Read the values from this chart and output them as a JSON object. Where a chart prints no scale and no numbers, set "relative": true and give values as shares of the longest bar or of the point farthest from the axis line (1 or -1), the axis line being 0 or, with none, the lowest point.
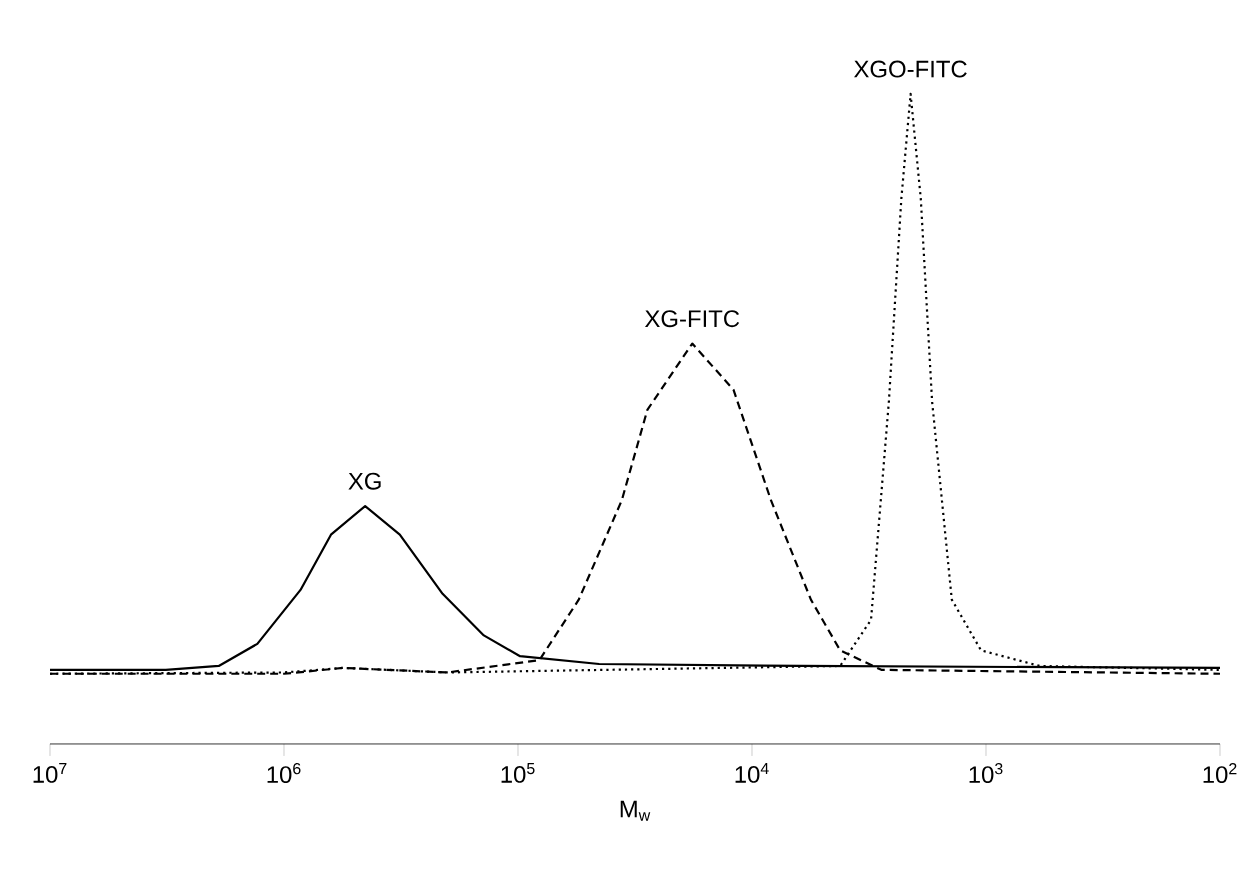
{
  "chart_data": {
    "type": "line",
    "xlabel": "M$_{w}$",
    "log": "x",
    "relative": true,
    "legend": false,
    "grid": false,
    "xlim": [
      10000000,
      100
    ],
    "xticks": [
      {
        "value": 10000000,
        "label": "10$^{7}$"
      },
      {
        "value": 1000000,
        "label": "10$^{6}$"
      },
      {
        "value": 100000,
        "label": "10$^{5}$"
      },
      {
        "value": 10000,
        "label": "10$^{4}$"
      },
      {
        "value": 1000,
        "label": "10$^{3}$"
      },
      {
        "value": 100,
        "label": "10$^{2}$"
      }
    ],
    "series": [
      {
        "name": "XG",
        "color": "#000000",
        "line_style": "solid",
        "x": [
          10000000,
          3200000,
          1900000,
          1300000,
          850000,
          630000,
          450000,
          320000,
          210000,
          140000,
          98000,
          45000,
          6200,
          100
        ],
        "values": [
          0.114,
          0.114,
          0.12,
          0.154,
          0.237,
          0.322,
          0.366,
          0.322,
          0.231,
          0.167,
          0.135,
          0.123,
          0.12,
          0.117
        ]
      },
      {
        "name": "XG-FITC",
        "color": "#000000",
        "line_style": "dashed",
        "x": [
          10000000,
          1000000,
          560000,
          200000,
          81000,
          55000,
          36000,
          28000,
          18000,
          12000,
          8300,
          5600,
          4200,
          2800,
          100
        ],
        "values": [
          0.108,
          0.108,
          0.117,
          0.11,
          0.129,
          0.222,
          0.375,
          0.514,
          0.616,
          0.545,
          0.375,
          0.222,
          0.144,
          0.114,
          0.108
        ]
      },
      {
        "name": "XGO-FITC",
        "color": "#000000",
        "line_style": "dotted",
        "x": [
          10000000,
          1000000,
          560000,
          200000,
          4200,
          3100,
          2600,
          2300,
          2100,
          1900,
          1700,
          1400,
          1050,
          590,
          100
        ],
        "values": [
          0.108,
          0.11,
          0.117,
          0.11,
          0.12,
          0.191,
          0.527,
          0.839,
          1.0,
          0.839,
          0.527,
          0.222,
          0.144,
          0.12,
          0.114
        ]
      }
    ]
  }
}
